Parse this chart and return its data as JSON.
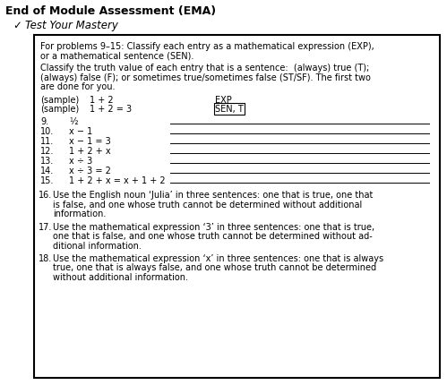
{
  "title": "End of Module Assessment (EMA)",
  "subtitle": "Test Your Mastery",
  "bg_color": "#ffffff",
  "box_bg": "#ffffff",
  "box_border": "#000000",
  "title_color": "#000000",
  "text_color": "#000000",
  "problems": [
    {
      "num": "9.",
      "expr": "½"
    },
    {
      "num": "10.",
      "expr": "x − 1"
    },
    {
      "num": "11.",
      "expr": "x − 1 = 3"
    },
    {
      "num": "12.",
      "expr": "1 + 2 + x"
    },
    {
      "num": "13.",
      "expr": "x ÷ 3"
    },
    {
      "num": "14.",
      "expr": "x ÷ 3 = 2"
    },
    {
      "num": "15.",
      "expr": "1 + 2 + x = x + 1 + 2"
    }
  ],
  "long_problems": [
    {
      "num": "16.",
      "lines": [
        "Use the English noun ‘Julia’ in three sentences: one that is true, one that",
        "is false, and one whose truth cannot be determined without additional",
        "information."
      ]
    },
    {
      "num": "17.",
      "lines": [
        "Use the mathematical expression ‘3’ in three sentences: one that is true,",
        "one that is false, and one whose truth cannot be determined without ad-",
        "ditional information."
      ]
    },
    {
      "num": "18.",
      "lines": [
        "Use the mathematical expression ‘x’ in three sentences: one that is always",
        "true, one that is always false, and one whose truth cannot be determined",
        "without additional information."
      ]
    }
  ]
}
